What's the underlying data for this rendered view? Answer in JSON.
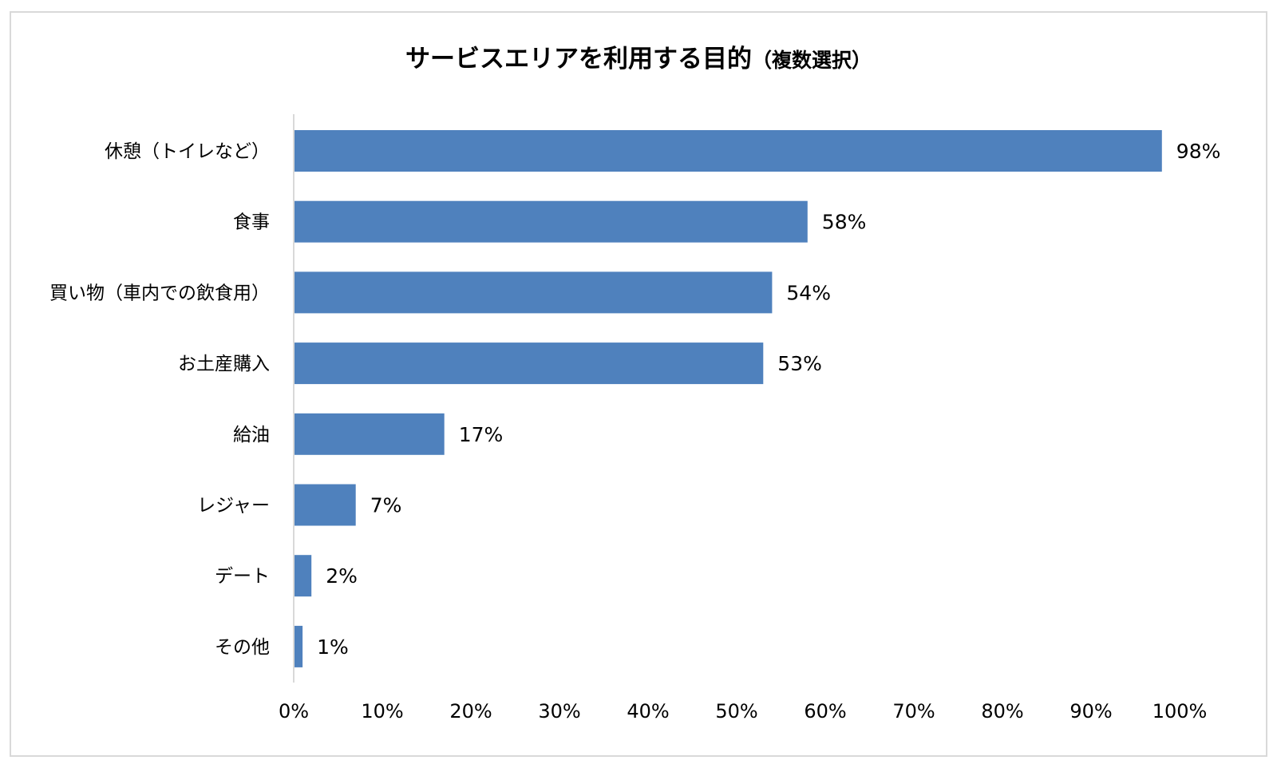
{
  "chart_data": {
    "type": "bar",
    "orientation": "horizontal",
    "title": "サービスエリアを利用する目的",
    "subtitle": "（複数選択）",
    "categories": [
      "休憩（トイレなど）",
      "食事",
      "買い物（車内での飲食用）",
      "お土産購入",
      "給油",
      "レジャー",
      "デート",
      "その他"
    ],
    "values": [
      98,
      58,
      54,
      53,
      17,
      7,
      2,
      1
    ],
    "value_labels": [
      "98%",
      "58%",
      "54%",
      "53%",
      "17%",
      "7%",
      "2%",
      "1%"
    ],
    "xlim": [
      0,
      100
    ],
    "xticks": [
      0,
      10,
      20,
      30,
      40,
      50,
      60,
      70,
      80,
      90,
      100
    ],
    "xtick_labels": [
      "0%",
      "10%",
      "20%",
      "30%",
      "40%",
      "50%",
      "60%",
      "70%",
      "80%",
      "90%",
      "100%"
    ],
    "grid": false,
    "bar_color": "#4f81bd",
    "axis_color": "#d9d9d9"
  }
}
